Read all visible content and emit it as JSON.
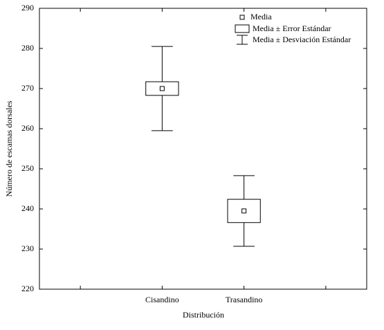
{
  "chart_data": {
    "type": "box",
    "x_label": "Distribución",
    "y_label": "Número de escamas dorsales",
    "categories": [
      "Cisandino",
      "Trasandino"
    ],
    "mean": [
      270,
      239.5
    ],
    "se": [
      1.7,
      2.9
    ],
    "sd": [
      10.5,
      8.8
    ],
    "legend": [
      "Media",
      "Media ± Error Estándar",
      "Media ± Desviación Estándar"
    ],
    "ylim": [
      220,
      290
    ],
    "yticks": [
      220,
      230,
      240,
      250,
      260,
      270,
      280,
      290
    ],
    "color": "#000000"
  }
}
